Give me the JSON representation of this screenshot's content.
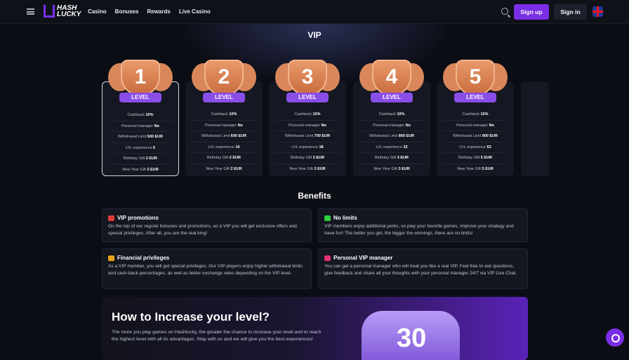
{
  "header": {
    "logo": "HASH LUCKY",
    "nav": [
      "Casino",
      "Bonuses",
      "Rewards",
      "Live Casino"
    ],
    "signup": "Sign up",
    "signin": "Sign in",
    "language": "en-GB"
  },
  "vip_title": "VIP",
  "levels": [
    {
      "number": "1",
      "ribbon": "LEVEL",
      "rows": [
        [
          "Cashback",
          "10%"
        ],
        [
          "Personal manager",
          "No"
        ],
        [
          "Withdrawal Limit",
          "500 EUR"
        ],
        [
          "LVL experience",
          "5"
        ],
        [
          "Birthday Gift",
          "2 EUR"
        ],
        [
          "New Year Gift",
          "2 EUR"
        ]
      ]
    },
    {
      "number": "2",
      "ribbon": "LEVEL",
      "rows": [
        [
          "Cashback",
          "10%"
        ],
        [
          "Personal manager",
          "No"
        ],
        [
          "Withdrawal Limit",
          "600 EUR"
        ],
        [
          "LVL experience",
          "10"
        ],
        [
          "Birthday Gift",
          "2 EUR"
        ],
        [
          "New Year Gift",
          "2 EUR"
        ]
      ]
    },
    {
      "number": "3",
      "ribbon": "LEVEL",
      "rows": [
        [
          "Cashback",
          "10%"
        ],
        [
          "Personal manager",
          "No"
        ],
        [
          "Withdrawal Limit",
          "700 EUR"
        ],
        [
          "LVL experience",
          "18"
        ],
        [
          "Birthday Gift",
          "3 EUR"
        ],
        [
          "New Year Gift",
          "3 EUR"
        ]
      ]
    },
    {
      "number": "4",
      "ribbon": "LEVEL",
      "rows": [
        [
          "Cashback",
          "10%"
        ],
        [
          "Personal manager",
          "No"
        ],
        [
          "Withdrawal Limit",
          "800 EUR"
        ],
        [
          "LVL experience",
          "33"
        ],
        [
          "Birthday Gift",
          "3 EUR"
        ],
        [
          "New Year Gift",
          "3 EUR"
        ]
      ]
    },
    {
      "number": "5",
      "ribbon": "LEVEL",
      "rows": [
        [
          "Cashback",
          "10%"
        ],
        [
          "Personal manager",
          "No"
        ],
        [
          "Withdrawal Limit",
          "900 EUR"
        ],
        [
          "LVL experience",
          "53"
        ],
        [
          "Birthday Gift",
          "5 EUR"
        ],
        [
          "New Year Gift",
          "5 EUR"
        ]
      ]
    }
  ],
  "benefits": {
    "title": "Benefits",
    "items": [
      {
        "icon": "crown-icon",
        "color": "#e23b3b",
        "title": "VIP promotions",
        "text": "On the top of our regular bonuses and promotions, as a VIP you will get exclusive offers and special privileges. After all, you are the real king!"
      },
      {
        "icon": "refresh-icon",
        "color": "#2fcf3f",
        "title": "No limits",
        "text": "VIP members enjoy additional perks, so play your favorite games, improve your strategy and have fun! The better you get, the bigger the winnings, there are no limits!"
      },
      {
        "icon": "money-bag-icon",
        "color": "#e8a21a",
        "title": "Financial privileges",
        "text": "As a VIP member, you will get special privileges. Our VIP players enjoy higher withdrawal limits and cash-back percentages, as well as better exchange rates depending on the VIP level."
      },
      {
        "icon": "manager-icon",
        "color": "#e2336e",
        "title": "Personal VIP manager",
        "text": "You can get a personal manager who will treat you like a real VIP. Feel free to ask questions, give feedback and share all your thoughts with your personal manager 24/7 via VIP Live Chat."
      }
    ]
  },
  "how": {
    "title": "How to Increase your level?",
    "text": "The more you play games on Hashlucky, the greater the chance to increase your level and to reach the highest level with all its advantages. Stay with us and we will give you the best experiences!",
    "badge_number": "30"
  }
}
